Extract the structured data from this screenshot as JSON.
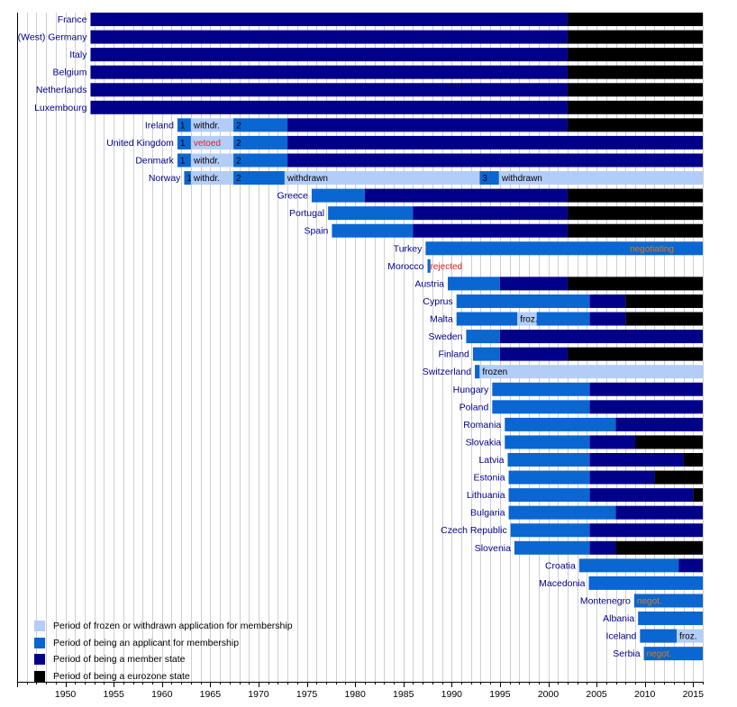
{
  "chart_data": {
    "type": "gantt",
    "x_range": [
      1945,
      2016
    ],
    "x_ticks": [
      1950,
      1955,
      1960,
      1965,
      1970,
      1975,
      1980,
      1985,
      1990,
      1995,
      2000,
      2005,
      2010,
      2015
    ],
    "colors": {
      "frozen": "#b3cdf9",
      "applicant": "#0a66d1",
      "member": "#00008b",
      "eurozone": "#000000",
      "label_orange": "#e07a10",
      "label_red": "#e02020",
      "label_dark": "#000000",
      "grid": "#cfcfcf",
      "country_text": "#00008b"
    },
    "legend": [
      {
        "key": "frozen",
        "label": "Period of frozen or withdrawn application for membership"
      },
      {
        "key": "applicant",
        "label": "Period of being an applicant for membership"
      },
      {
        "key": "member",
        "label": "Period of being a member state"
      },
      {
        "key": "eurozone",
        "label": "Period of being a eurozone state"
      }
    ],
    "rows": [
      {
        "country": "France",
        "segments": [
          {
            "s": 1952.6,
            "e": 2002.0,
            "t": "member"
          },
          {
            "s": 2002.0,
            "e": 2016,
            "t": "eurozone"
          }
        ]
      },
      {
        "country": "(West) Germany",
        "segments": [
          {
            "s": 1952.6,
            "e": 2002.0,
            "t": "member"
          },
          {
            "s": 2002.0,
            "e": 2016,
            "t": "eurozone"
          }
        ]
      },
      {
        "country": "Italy",
        "segments": [
          {
            "s": 1952.6,
            "e": 2002.0,
            "t": "member"
          },
          {
            "s": 2002.0,
            "e": 2016,
            "t": "eurozone"
          }
        ]
      },
      {
        "country": "Belgium",
        "segments": [
          {
            "s": 1952.6,
            "e": 2002.0,
            "t": "member"
          },
          {
            "s": 2002.0,
            "e": 2016,
            "t": "eurozone"
          }
        ]
      },
      {
        "country": "Netherlands",
        "segments": [
          {
            "s": 1952.6,
            "e": 2002.0,
            "t": "member"
          },
          {
            "s": 2002.0,
            "e": 2016,
            "t": "eurozone"
          }
        ]
      },
      {
        "country": "Luxembourg",
        "segments": [
          {
            "s": 1952.6,
            "e": 2002.0,
            "t": "member"
          },
          {
            "s": 2002.0,
            "e": 2016,
            "t": "eurozone"
          }
        ]
      },
      {
        "country": "Ireland",
        "segments": [
          {
            "s": 1961.6,
            "e": 1963.0,
            "t": "applicant",
            "label": "1",
            "lc": "label_dark"
          },
          {
            "s": 1963.0,
            "e": 1967.4,
            "t": "frozen",
            "label": "withdr.",
            "lc": "label_dark"
          },
          {
            "s": 1967.4,
            "e": 1973.0,
            "t": "applicant",
            "label": "2",
            "lc": "label_dark"
          },
          {
            "s": 1973.0,
            "e": 2002.0,
            "t": "member"
          },
          {
            "s": 2002.0,
            "e": 2016,
            "t": "eurozone"
          }
        ]
      },
      {
        "country": "United Kingdom",
        "segments": [
          {
            "s": 1961.6,
            "e": 1963.0,
            "t": "applicant",
            "label": "1",
            "lc": "label_dark"
          },
          {
            "s": 1963.0,
            "e": 1967.4,
            "t": "frozen",
            "label": "vetoed",
            "lc": "label_red"
          },
          {
            "s": 1967.4,
            "e": 1973.0,
            "t": "applicant",
            "label": "2",
            "lc": "label_dark"
          },
          {
            "s": 1973.0,
            "e": 2016,
            "t": "member"
          }
        ]
      },
      {
        "country": "Denmark",
        "segments": [
          {
            "s": 1961.6,
            "e": 1963.0,
            "t": "applicant",
            "label": "1",
            "lc": "label_dark"
          },
          {
            "s": 1963.0,
            "e": 1967.4,
            "t": "frozen",
            "label": "withdr.",
            "lc": "label_dark"
          },
          {
            "s": 1967.4,
            "e": 1973.0,
            "t": "applicant",
            "label": "2",
            "lc": "label_dark"
          },
          {
            "s": 1973.0,
            "e": 2016,
            "t": "member"
          }
        ]
      },
      {
        "country": "Norway",
        "segments": [
          {
            "s": 1962.3,
            "e": 1963.0,
            "t": "applicant",
            "label": "1",
            "lc": "label_dark"
          },
          {
            "s": 1963.0,
            "e": 1967.4,
            "t": "frozen",
            "label": "withdr.",
            "lc": "label_dark"
          },
          {
            "s": 1967.4,
            "e": 1972.7,
            "t": "applicant",
            "label": "2",
            "lc": "label_dark"
          },
          {
            "s": 1972.7,
            "e": 1992.9,
            "t": "frozen",
            "label": "withdrawn",
            "lc": "label_dark"
          },
          {
            "s": 1992.9,
            "e": 1994.9,
            "t": "applicant",
            "label": "3",
            "lc": "label_dark"
          },
          {
            "s": 1994.9,
            "e": 2016,
            "t": "frozen",
            "label": "withdrawn",
            "lc": "label_dark"
          }
        ]
      },
      {
        "country": "Greece",
        "segments": [
          {
            "s": 1975.5,
            "e": 1981.0,
            "t": "applicant"
          },
          {
            "s": 1981.0,
            "e": 2002.0,
            "t": "member"
          },
          {
            "s": 2002.0,
            "e": 2016,
            "t": "eurozone"
          }
        ]
      },
      {
        "country": "Portugal",
        "segments": [
          {
            "s": 1977.2,
            "e": 1986.0,
            "t": "applicant"
          },
          {
            "s": 1986.0,
            "e": 2002.0,
            "t": "member"
          },
          {
            "s": 2002.0,
            "e": 2016,
            "t": "eurozone"
          }
        ]
      },
      {
        "country": "Spain",
        "segments": [
          {
            "s": 1977.6,
            "e": 1986.0,
            "t": "applicant"
          },
          {
            "s": 1986.0,
            "e": 2002.0,
            "t": "member"
          },
          {
            "s": 2002.0,
            "e": 2016,
            "t": "eurozone"
          }
        ]
      },
      {
        "country": "Turkey",
        "segments": [
          {
            "s": 1987.3,
            "e": 2016,
            "t": "applicant",
            "label": "negotiating",
            "lc": "label_orange",
            "align": "end"
          }
        ]
      },
      {
        "country": "Morocco",
        "segments": [
          {
            "s": 1987.5,
            "e": 1987.8,
            "t": "applicant",
            "label": "rejected",
            "lc": "label_red"
          }
        ]
      },
      {
        "country": "Austria",
        "segments": [
          {
            "s": 1989.6,
            "e": 1995.0,
            "t": "applicant"
          },
          {
            "s": 1995.0,
            "e": 2002.0,
            "t": "member"
          },
          {
            "s": 2002.0,
            "e": 2016,
            "t": "eurozone"
          }
        ]
      },
      {
        "country": "Cyprus",
        "segments": [
          {
            "s": 1990.5,
            "e": 2004.3,
            "t": "applicant"
          },
          {
            "s": 2004.3,
            "e": 2008.0,
            "t": "member"
          },
          {
            "s": 2008.0,
            "e": 2016,
            "t": "eurozone"
          }
        ]
      },
      {
        "country": "Malta",
        "segments": [
          {
            "s": 1990.5,
            "e": 1996.8,
            "t": "applicant"
          },
          {
            "s": 1996.8,
            "e": 1998.8,
            "t": "frozen",
            "label": "froz.",
            "lc": "label_dark"
          },
          {
            "s": 1998.8,
            "e": 2004.3,
            "t": "applicant"
          },
          {
            "s": 2004.3,
            "e": 2008.0,
            "t": "member"
          },
          {
            "s": 2008.0,
            "e": 2016,
            "t": "eurozone"
          }
        ]
      },
      {
        "country": "Sweden",
        "segments": [
          {
            "s": 1991.5,
            "e": 1995.0,
            "t": "applicant"
          },
          {
            "s": 1995.0,
            "e": 2016,
            "t": "member"
          }
        ]
      },
      {
        "country": "Finland",
        "segments": [
          {
            "s": 1992.2,
            "e": 1995.0,
            "t": "applicant"
          },
          {
            "s": 1995.0,
            "e": 2002.0,
            "t": "member"
          },
          {
            "s": 2002.0,
            "e": 2016,
            "t": "eurozone"
          }
        ]
      },
      {
        "country": "Switzerland",
        "segments": [
          {
            "s": 1992.4,
            "e": 1992.9,
            "t": "applicant"
          },
          {
            "s": 1992.9,
            "e": 2016,
            "t": "frozen",
            "label": "frozen",
            "lc": "label_dark"
          }
        ]
      },
      {
        "country": "Hungary",
        "segments": [
          {
            "s": 1994.2,
            "e": 2004.3,
            "t": "applicant"
          },
          {
            "s": 2004.3,
            "e": 2016,
            "t": "member"
          }
        ]
      },
      {
        "country": "Poland",
        "segments": [
          {
            "s": 1994.2,
            "e": 2004.3,
            "t": "applicant"
          },
          {
            "s": 2004.3,
            "e": 2016,
            "t": "member"
          }
        ]
      },
      {
        "country": "Romania",
        "segments": [
          {
            "s": 1995.5,
            "e": 2007.0,
            "t": "applicant"
          },
          {
            "s": 2007.0,
            "e": 2016,
            "t": "member"
          }
        ]
      },
      {
        "country": "Slovakia",
        "segments": [
          {
            "s": 1995.5,
            "e": 2004.3,
            "t": "applicant"
          },
          {
            "s": 2004.3,
            "e": 2009.0,
            "t": "member"
          },
          {
            "s": 2009.0,
            "e": 2016,
            "t": "eurozone"
          }
        ]
      },
      {
        "country": "Latvia",
        "segments": [
          {
            "s": 1995.8,
            "e": 2004.3,
            "t": "applicant"
          },
          {
            "s": 2004.3,
            "e": 2014.0,
            "t": "member"
          },
          {
            "s": 2014.0,
            "e": 2016,
            "t": "eurozone"
          }
        ]
      },
      {
        "country": "Estonia",
        "segments": [
          {
            "s": 1995.9,
            "e": 2004.3,
            "t": "applicant"
          },
          {
            "s": 2004.3,
            "e": 2011.0,
            "t": "member"
          },
          {
            "s": 2011.0,
            "e": 2016,
            "t": "eurozone"
          }
        ]
      },
      {
        "country": "Lithuania",
        "segments": [
          {
            "s": 1995.9,
            "e": 2004.3,
            "t": "applicant"
          },
          {
            "s": 2004.3,
            "e": 2015.0,
            "t": "member"
          },
          {
            "s": 2015.0,
            "e": 2016,
            "t": "eurozone"
          }
        ]
      },
      {
        "country": "Bulgaria",
        "segments": [
          {
            "s": 1995.9,
            "e": 2007.0,
            "t": "applicant"
          },
          {
            "s": 2007.0,
            "e": 2016,
            "t": "member"
          }
        ]
      },
      {
        "country": "Czech Republic",
        "segments": [
          {
            "s": 1996.1,
            "e": 2004.3,
            "t": "applicant"
          },
          {
            "s": 2004.3,
            "e": 2016,
            "t": "member"
          }
        ]
      },
      {
        "country": "Slovenia",
        "segments": [
          {
            "s": 1996.5,
            "e": 2004.3,
            "t": "applicant"
          },
          {
            "s": 2004.3,
            "e": 2007.0,
            "t": "member"
          },
          {
            "s": 2007.0,
            "e": 2016,
            "t": "eurozone"
          }
        ]
      },
      {
        "country": "Croatia",
        "segments": [
          {
            "s": 2003.2,
            "e": 2013.5,
            "t": "applicant"
          },
          {
            "s": 2013.5,
            "e": 2016,
            "t": "member"
          }
        ]
      },
      {
        "country": "Macedonia",
        "segments": [
          {
            "s": 2004.2,
            "e": 2016,
            "t": "applicant"
          }
        ]
      },
      {
        "country": "Montenegro",
        "segments": [
          {
            "s": 2008.9,
            "e": 2016,
            "t": "applicant",
            "label": "negot.",
            "lc": "label_orange"
          }
        ]
      },
      {
        "country": "Albania",
        "segments": [
          {
            "s": 2009.3,
            "e": 2016,
            "t": "applicant"
          }
        ]
      },
      {
        "country": "Iceland",
        "segments": [
          {
            "s": 2009.5,
            "e": 2013.3,
            "t": "applicant"
          },
          {
            "s": 2013.3,
            "e": 2016,
            "t": "frozen",
            "label": "froz.",
            "lc": "label_dark"
          }
        ]
      },
      {
        "country": "Serbia",
        "segments": [
          {
            "s": 2009.9,
            "e": 2016,
            "t": "applicant",
            "label": "negot.",
            "lc": "label_orange"
          }
        ]
      }
    ]
  }
}
